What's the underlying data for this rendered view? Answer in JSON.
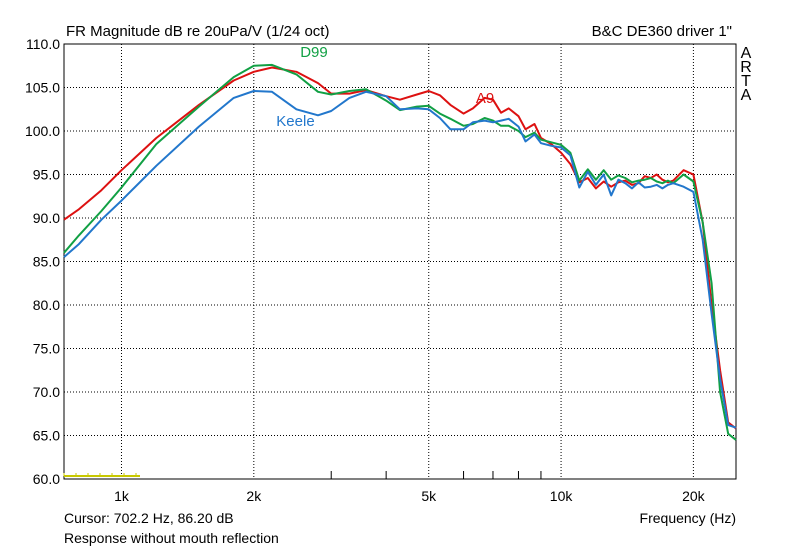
{
  "chart_data": {
    "type": "line",
    "title": "FR Magnitude dB re 20uPa/V (1/24 oct)",
    "subtitle": "B&C DE360 driver 1\"",
    "brand": "ARTA",
    "xlabel": "Frequency (Hz)",
    "ylabel": "",
    "x_scale": "log",
    "xlim": [
      740,
      25000
    ],
    "ylim": [
      60,
      110
    ],
    "grid": true,
    "y_ticks": [
      "60.0",
      "65.0",
      "70.0",
      "75.0",
      "80.0",
      "85.0",
      "90.0",
      "95.0",
      "100.0",
      "105.0",
      "110.0"
    ],
    "x_ticks": [
      {
        "value": 1000,
        "label": "1k"
      },
      {
        "value": 2000,
        "label": "2k"
      },
      {
        "value": 5000,
        "label": "5k"
      },
      {
        "value": 10000,
        "label": "10k"
      },
      {
        "value": 20000,
        "label": "20k"
      }
    ],
    "x_minor_ticks": [
      3000,
      4000,
      6000,
      7000,
      8000,
      9000
    ],
    "series": [
      {
        "name": "A9",
        "color": "#dd1111",
        "x": [
          740,
          800,
          900,
          1000,
          1200,
          1500,
          1800,
          2000,
          2200,
          2500,
          2800,
          3000,
          3300,
          3600,
          4000,
          4300,
          4700,
          5000,
          5300,
          5600,
          6000,
          6300,
          6700,
          7000,
          7300,
          7600,
          8000,
          8300,
          8700,
          9000,
          9500,
          10000,
          10500,
          11000,
          11500,
          12000,
          12500,
          13000,
          13500,
          14000,
          14500,
          15000,
          15500,
          16000,
          16500,
          17000,
          17500,
          18000,
          19000,
          20000,
          21000,
          22000,
          23000,
          24000,
          25000
        ],
        "values": [
          89.8,
          91.0,
          93.2,
          95.5,
          99.2,
          103.0,
          105.8,
          106.8,
          107.3,
          106.8,
          105.5,
          104.3,
          104.3,
          104.7,
          104.0,
          103.6,
          104.2,
          104.6,
          104.1,
          103.0,
          102.0,
          102.6,
          103.8,
          103.6,
          102.1,
          102.6,
          101.7,
          100.2,
          100.8,
          99.2,
          98.5,
          97.5,
          96.2,
          94.1,
          94.6,
          93.4,
          94.2,
          93.6,
          94.1,
          94.3,
          93.8,
          94.0,
          94.8,
          94.6,
          95.0,
          94.4,
          94.1,
          94.3,
          95.5,
          95.0,
          89.5,
          80.0,
          72.5,
          66.5,
          65.8
        ]
      },
      {
        "name": "D99",
        "color": "#11a044",
        "x": [
          740,
          800,
          900,
          1000,
          1200,
          1500,
          1800,
          2000,
          2200,
          2500,
          2800,
          3000,
          3300,
          3600,
          4000,
          4300,
          4700,
          5000,
          5300,
          5600,
          6000,
          6300,
          6700,
          7000,
          7300,
          7600,
          8000,
          8300,
          8700,
          9000,
          9500,
          10000,
          10500,
          11000,
          11500,
          12000,
          12500,
          13000,
          13500,
          14000,
          14500,
          15000,
          15500,
          16000,
          16500,
          17000,
          17500,
          18000,
          19000,
          20000,
          21000,
          22000,
          23000,
          24000,
          25000
        ],
        "values": [
          86.0,
          88.0,
          90.8,
          93.5,
          98.5,
          102.8,
          106.2,
          107.5,
          107.6,
          106.5,
          104.5,
          104.2,
          104.6,
          104.8,
          103.5,
          102.4,
          102.8,
          102.9,
          102.0,
          101.4,
          100.6,
          100.8,
          101.5,
          101.2,
          100.6,
          100.6,
          100.0,
          99.3,
          99.8,
          99.0,
          98.7,
          98.4,
          97.5,
          94.3,
          95.6,
          94.4,
          95.5,
          94.4,
          94.9,
          94.6,
          94.1,
          94.3,
          94.4,
          94.6,
          94.2,
          94.0,
          94.3,
          94.0,
          95.0,
          94.2,
          89.5,
          82.5,
          70.0,
          65.2,
          64.5
        ]
      },
      {
        "name": "Keele",
        "color": "#2277cc",
        "x": [
          740,
          800,
          900,
          1000,
          1200,
          1500,
          1800,
          2000,
          2200,
          2500,
          2800,
          3000,
          3300,
          3600,
          4000,
          4300,
          4700,
          5000,
          5300,
          5600,
          6000,
          6300,
          6700,
          7000,
          7300,
          7600,
          8000,
          8300,
          8700,
          9000,
          9500,
          10000,
          10500,
          11000,
          11500,
          12000,
          12500,
          13000,
          13500,
          14000,
          14500,
          15000,
          15500,
          16000,
          16500,
          17000,
          17500,
          18000,
          19000,
          20000,
          21000,
          22000,
          23000,
          24000,
          25000
        ],
        "values": [
          85.5,
          87.0,
          89.8,
          92.0,
          96.0,
          100.5,
          103.8,
          104.6,
          104.5,
          102.5,
          101.8,
          102.3,
          103.8,
          104.5,
          104.0,
          102.5,
          102.6,
          102.5,
          101.5,
          100.2,
          100.2,
          101.0,
          101.2,
          101.0,
          101.2,
          101.4,
          100.5,
          98.8,
          99.6,
          98.6,
          98.3,
          98.1,
          97.2,
          93.5,
          95.3,
          93.8,
          95.0,
          92.6,
          94.4,
          94.0,
          93.4,
          94.1,
          93.5,
          93.6,
          93.8,
          93.4,
          93.8,
          94.0,
          93.6,
          93.0,
          87.5,
          79.0,
          71.5,
          66.2,
          65.9
        ]
      }
    ],
    "series_labels": [
      {
        "name": "D99",
        "text": "D99",
        "x": 2550,
        "y": 108.5
      },
      {
        "name": "A9",
        "text": "A9",
        "x": 6400,
        "y": 103.2
      },
      {
        "name": "Keele",
        "text": "Keele",
        "x": 2250,
        "y": 100.6
      }
    ],
    "cursor": {
      "frequency": 702.2,
      "level": 86.2
    },
    "footer": {
      "cursor_text": "Cursor: 702.2 Hz, 86.20 dB",
      "note": "Response without mouth reflection"
    },
    "marker_color": "#c8c800"
  }
}
